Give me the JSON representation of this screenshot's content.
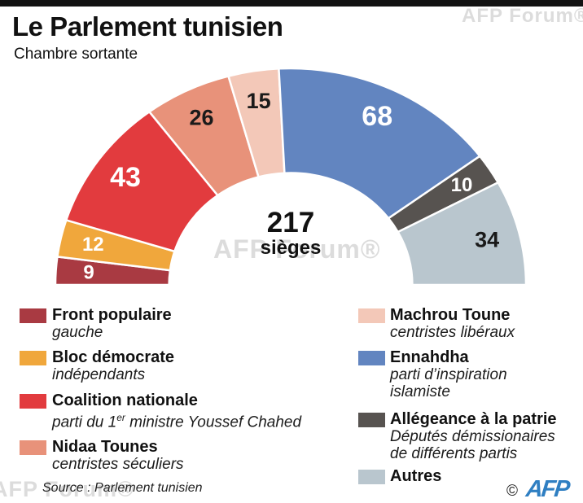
{
  "header": {
    "title": "Le Parlement tunisien",
    "subtitle": "Chambre sortante"
  },
  "center": {
    "total": "217",
    "unit": "sièges"
  },
  "chart_data": {
    "type": "pie",
    "variant": "semicircle-donut",
    "title": "Le Parlement tunisien — Chambre sortante",
    "total_seats": 217,
    "direction": "left-to-right across the half circle",
    "series": [
      {
        "name": "Front populaire",
        "desc": "gauche",
        "value": 9,
        "color": "#a93a42",
        "label_color": "#ffffff"
      },
      {
        "name": "Bloc démocrate",
        "desc": "indépendants",
        "value": 12,
        "color": "#f0a73c",
        "label_color": "#ffffff"
      },
      {
        "name": "Coalition nationale",
        "desc": "parti du 1er ministre Youssef Chahed",
        "value": 43,
        "color": "#e23b3e",
        "label_color": "#ffffff"
      },
      {
        "name": "Nidaa Tounes",
        "desc": "centristes séculiers",
        "value": 26,
        "color": "#e8927a",
        "label_color": "#1a1a1a"
      },
      {
        "name": "Machrou Toune",
        "desc": "centristes libéraux",
        "value": 15,
        "color": "#f3c8b8",
        "label_color": "#1a1a1a"
      },
      {
        "name": "Ennahdha",
        "desc": "parti d’inspiration islamiste",
        "value": 68,
        "color": "#6285c0",
        "label_color": "#ffffff"
      },
      {
        "name": "Allégeance à la patrie",
        "desc": "Députés démissionaires de différents partis",
        "value": 10,
        "color": "#575350",
        "label_color": "#ffffff"
      },
      {
        "name": "Autres",
        "desc": "",
        "value": 34,
        "color": "#b9c6ce",
        "label_color": "#1a1a1a"
      }
    ]
  },
  "legend": {
    "left": [
      {
        "name": "Front populaire",
        "sub1": "gauche"
      },
      {
        "name": "Bloc démocrate",
        "sub1": "indépendants"
      },
      {
        "name": "Coalition nationale",
        "desc_pre": "parti du 1",
        "desc_sup": "er",
        "desc_post": " ministre Youssef Chahed"
      },
      {
        "name": "Nidaa Tounes",
        "sub1": "centristes séculiers"
      }
    ],
    "right": [
      {
        "name": "Machrou Toune",
        "sub1": "centristes libéraux"
      },
      {
        "name": "Ennahdha",
        "sub1": "parti d’inspiration",
        "sub2": "islamiste"
      },
      {
        "name": "Allégeance à la patrie",
        "sub1": "Députés démissionaires",
        "sub2": "de différents partis"
      },
      {
        "name": "Autres"
      }
    ]
  },
  "footer": {
    "source": "Source : Parlement tunisien",
    "copyright": "©",
    "logo": "AFP"
  },
  "watermark": {
    "text": "AFP Forum®"
  }
}
